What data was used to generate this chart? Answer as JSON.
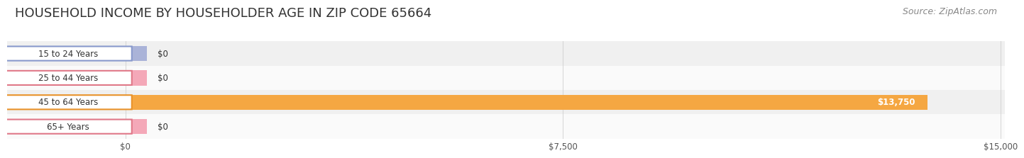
{
  "title": "HOUSEHOLD INCOME BY HOUSEHOLDER AGE IN ZIP CODE 65664",
  "source": "Source: ZipAtlas.com",
  "categories": [
    "15 to 24 Years",
    "25 to 44 Years",
    "45 to 64 Years",
    "65+ Years"
  ],
  "values": [
    0,
    0,
    13750,
    0
  ],
  "bar_colors": [
    "#aab3d8",
    "#f4a8b8",
    "#f5a742",
    "#f4a8b8"
  ],
  "bar_border_colors": [
    "#8899cc",
    "#e07888",
    "#e8922a",
    "#e07888"
  ],
  "row_bg_colors": [
    "#f0f0f0",
    "#fafafa",
    "#f0f0f0",
    "#fafafa"
  ],
  "xmax": 15000,
  "xtick_values": [
    0,
    7500,
    15000
  ],
  "xtick_labels": [
    "$0",
    "$7,500",
    "$15,000"
  ],
  "value_label_color": "#333333",
  "title_fontsize": 13,
  "source_fontsize": 9,
  "bar_height": 0.62,
  "background_color": "#ffffff",
  "grid_color": "#cccccc"
}
